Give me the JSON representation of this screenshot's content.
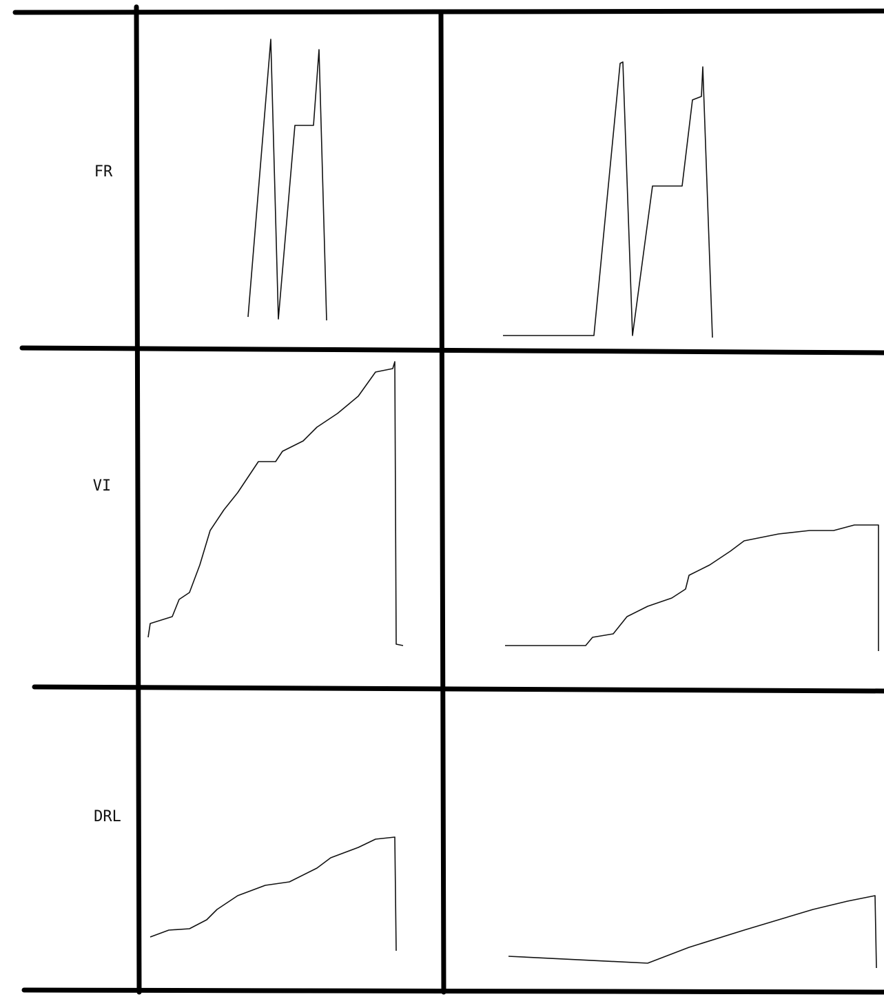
{
  "row_labels": [
    "FR",
    "VI",
    "DRL"
  ]
}
